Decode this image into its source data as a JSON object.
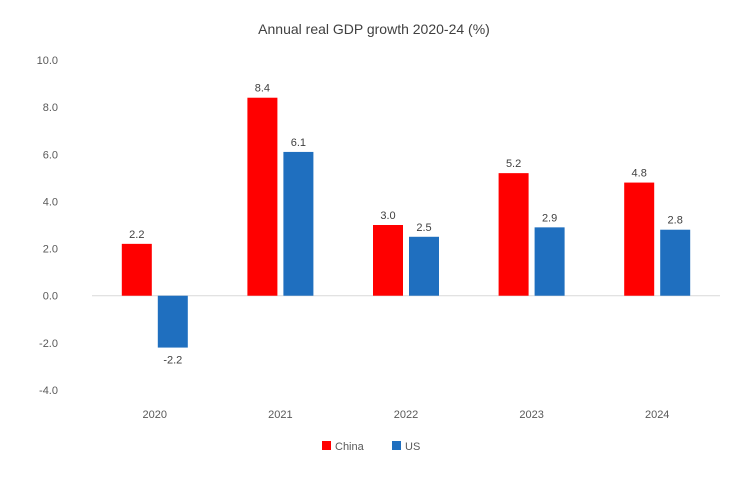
{
  "chart_data": {
    "type": "bar",
    "title": "Annual real GDP growth 2020-24 (%)",
    "xlabel": "",
    "ylabel": "",
    "categories": [
      "2020",
      "2021",
      "2022",
      "2023",
      "2024"
    ],
    "series": [
      {
        "name": "China",
        "color": "#ff0000",
        "values": [
          2.2,
          8.4,
          3.0,
          5.2,
          4.8
        ],
        "labels": [
          "2.2",
          "8.4",
          "3.0",
          "5.2",
          "4.8"
        ]
      },
      {
        "name": "US",
        "color": "#1f6fbf",
        "values": [
          -2.2,
          6.1,
          2.5,
          2.9,
          2.8
        ],
        "labels": [
          "-2.2",
          "6.1",
          "2.5",
          "2.9",
          "2.8"
        ]
      }
    ],
    "ylim": [
      -4.0,
      10.0
    ],
    "yticks": [
      10.0,
      8.0,
      6.0,
      4.0,
      2.0,
      0.0,
      -2.0,
      -4.0
    ],
    "ytick_labels": [
      "10.0",
      "8.0",
      "6.0",
      "4.0",
      "2.0",
      "0.0",
      "-2.0",
      "-4.0"
    ],
    "grid": false,
    "legend_position": "bottom"
  }
}
